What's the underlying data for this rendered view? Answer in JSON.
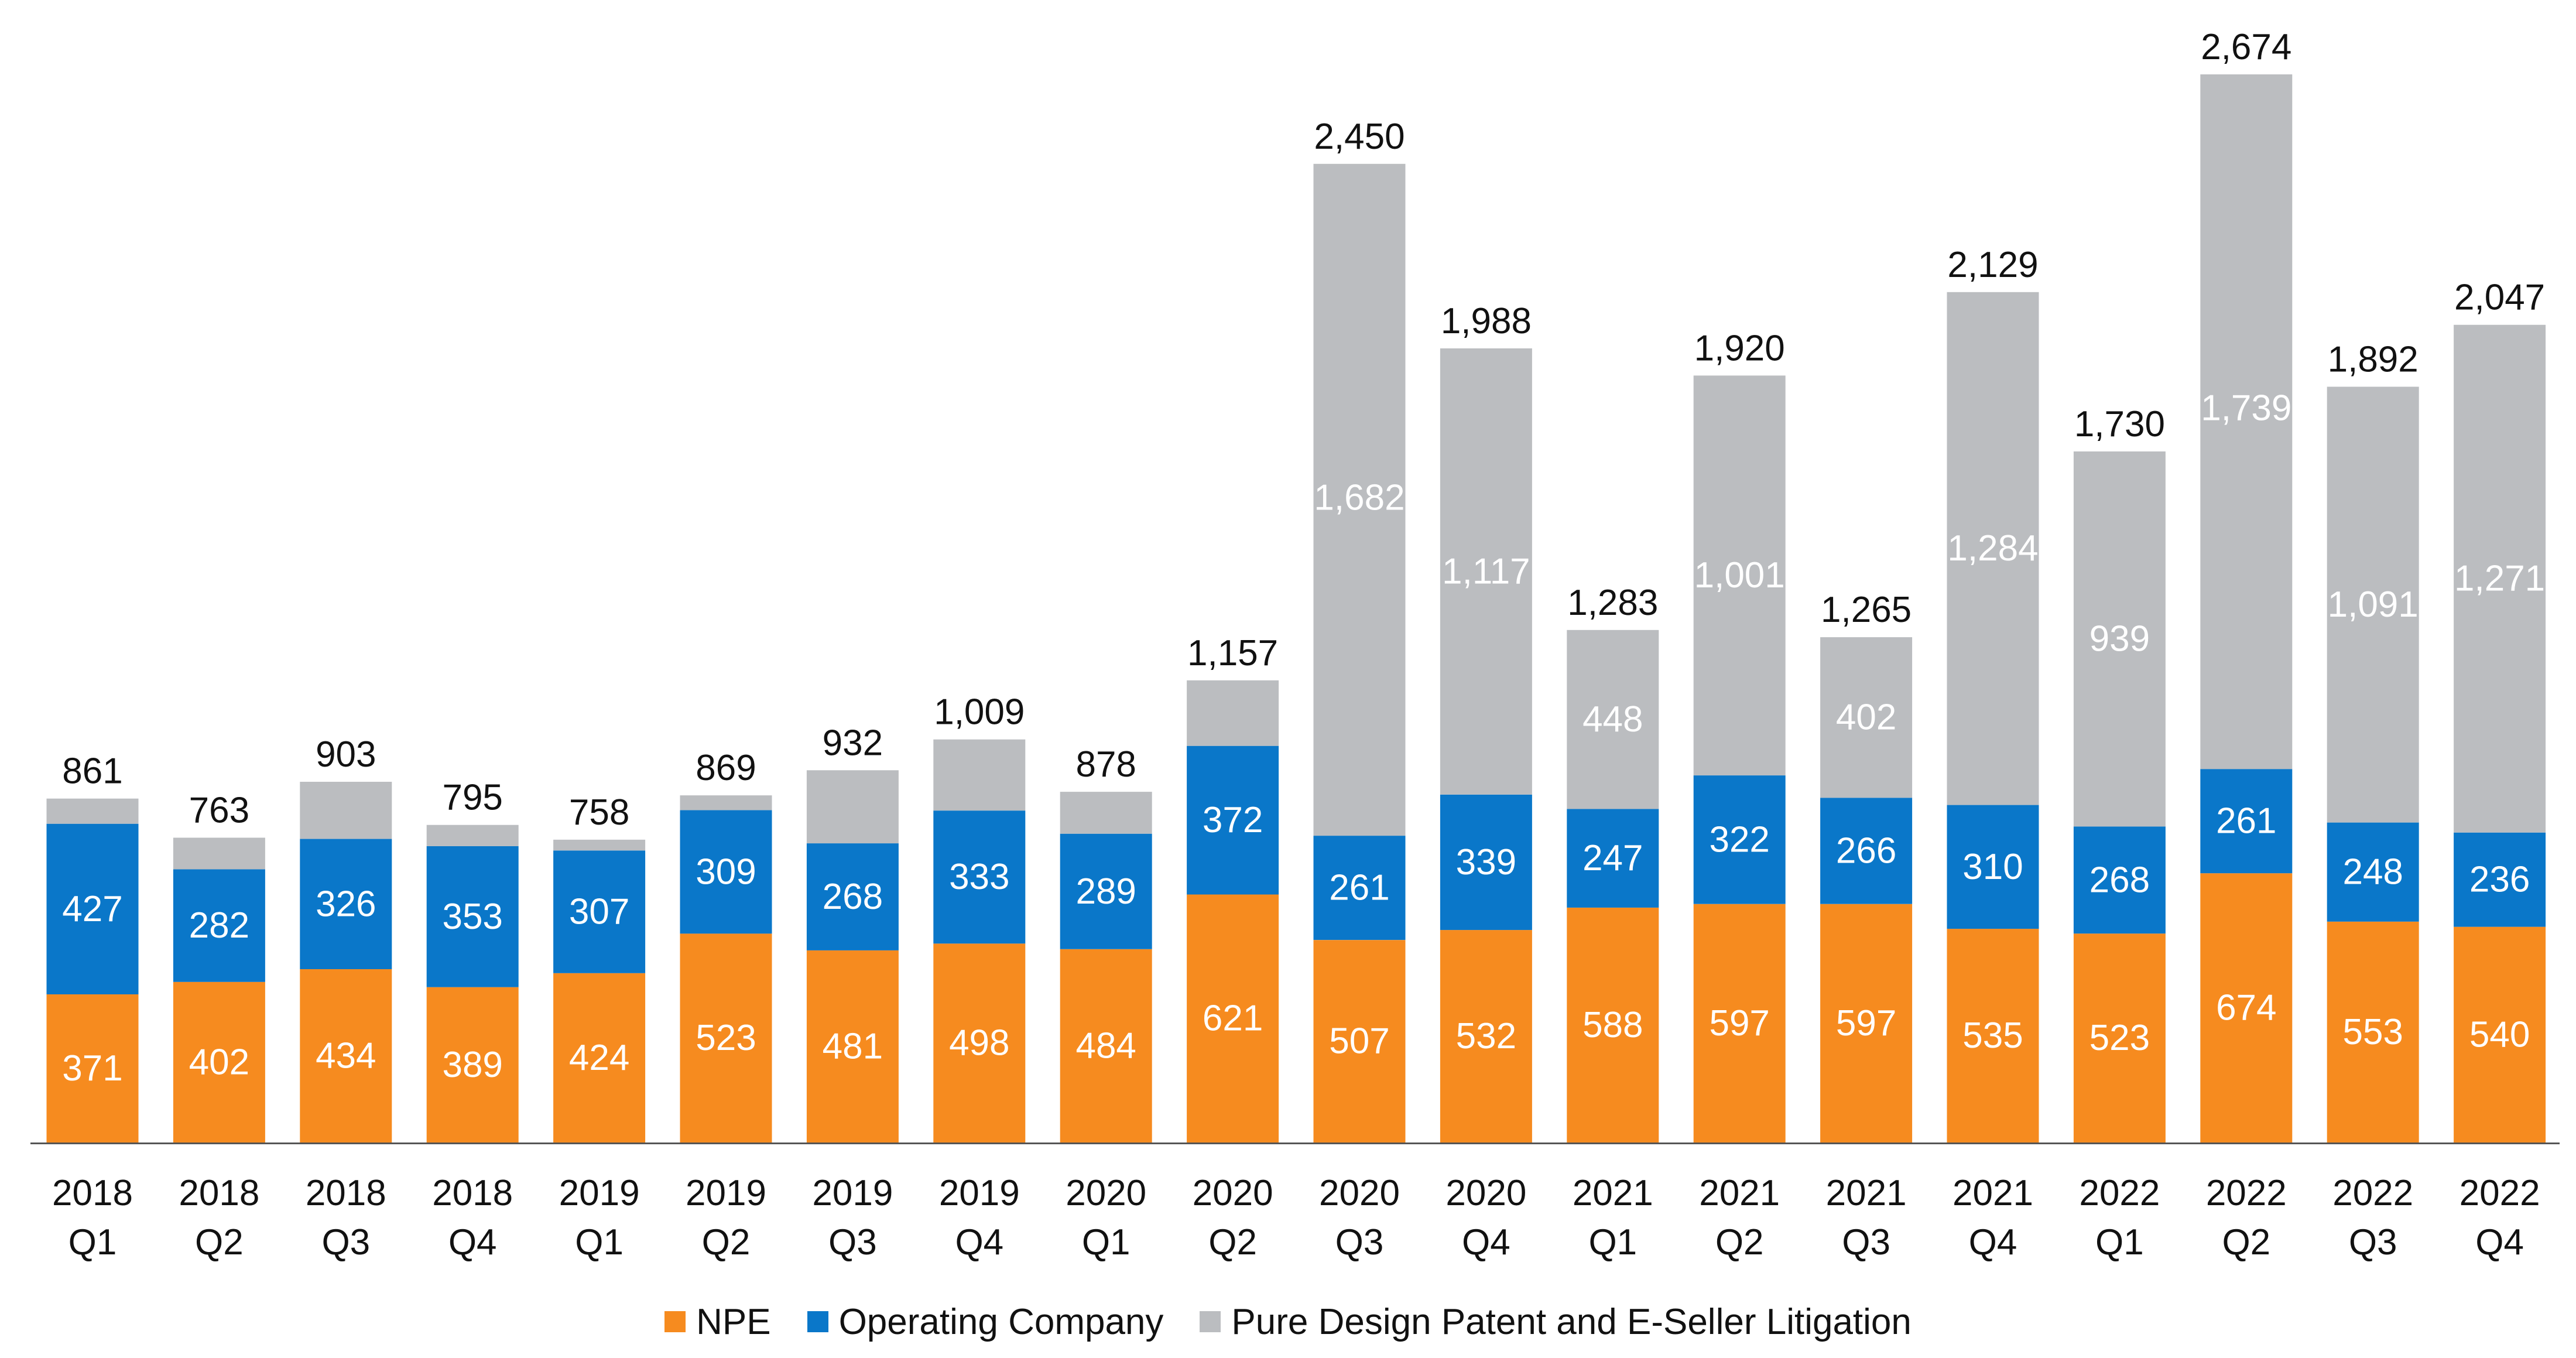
{
  "chart_data": {
    "type": "bar",
    "stacked": true,
    "title": "",
    "xlabel": "",
    "ylabel": "",
    "ylim": [
      0,
      2674
    ],
    "grid": false,
    "legend_position": "bottom",
    "categories": [
      [
        "2018",
        "Q1"
      ],
      [
        "2018",
        "Q2"
      ],
      [
        "2018",
        "Q3"
      ],
      [
        "2018",
        "Q4"
      ],
      [
        "2019",
        "Q1"
      ],
      [
        "2019",
        "Q2"
      ],
      [
        "2019",
        "Q3"
      ],
      [
        "2019",
        "Q4"
      ],
      [
        "2020",
        "Q1"
      ],
      [
        "2020",
        "Q2"
      ],
      [
        "2020",
        "Q3"
      ],
      [
        "2020",
        "Q4"
      ],
      [
        "2021",
        "Q1"
      ],
      [
        "2021",
        "Q2"
      ],
      [
        "2021",
        "Q3"
      ],
      [
        "2021",
        "Q4"
      ],
      [
        "2022",
        "Q1"
      ],
      [
        "2022",
        "Q2"
      ],
      [
        "2022",
        "Q3"
      ],
      [
        "2022",
        "Q4"
      ]
    ],
    "series": [
      {
        "name": "NPE",
        "color": "#F68B1F",
        "values": [
          371,
          402,
          434,
          389,
          424,
          523,
          481,
          498,
          484,
          621,
          507,
          532,
          588,
          597,
          597,
          535,
          523,
          674,
          553,
          540
        ],
        "show_labels": [
          true,
          true,
          true,
          true,
          true,
          true,
          true,
          true,
          true,
          true,
          true,
          true,
          true,
          true,
          true,
          true,
          true,
          true,
          true,
          true
        ]
      },
      {
        "name": "Operating Company",
        "color": "#0A77C9",
        "values": [
          427,
          282,
          326,
          353,
          307,
          309,
          268,
          333,
          289,
          372,
          261,
          339,
          247,
          322,
          266,
          310,
          268,
          261,
          248,
          236
        ],
        "show_labels": [
          true,
          true,
          true,
          true,
          true,
          true,
          true,
          true,
          true,
          true,
          true,
          true,
          true,
          true,
          true,
          true,
          true,
          true,
          true,
          true
        ]
      },
      {
        "name": "Pure Design Patent and E-Seller Litigation",
        "color": "#BBBDC0",
        "values": [
          63,
          79,
          143,
          53,
          27,
          37,
          183,
          178,
          105,
          164,
          1682,
          1117,
          448,
          1001,
          402,
          1284,
          939,
          1739,
          1091,
          1271
        ],
        "show_labels": [
          false,
          false,
          false,
          false,
          false,
          false,
          false,
          false,
          false,
          false,
          true,
          true,
          true,
          true,
          true,
          true,
          true,
          true,
          true,
          true
        ]
      }
    ],
    "totals": [
      "861",
      "763",
      "903",
      "795",
      "758",
      "869",
      "932",
      "1,009",
      "878",
      "1,157",
      "2,450",
      "1,988",
      "1,283",
      "1,920",
      "1,265",
      "2,129",
      "1,730",
      "2,674",
      "1,892",
      "2,047"
    ]
  }
}
